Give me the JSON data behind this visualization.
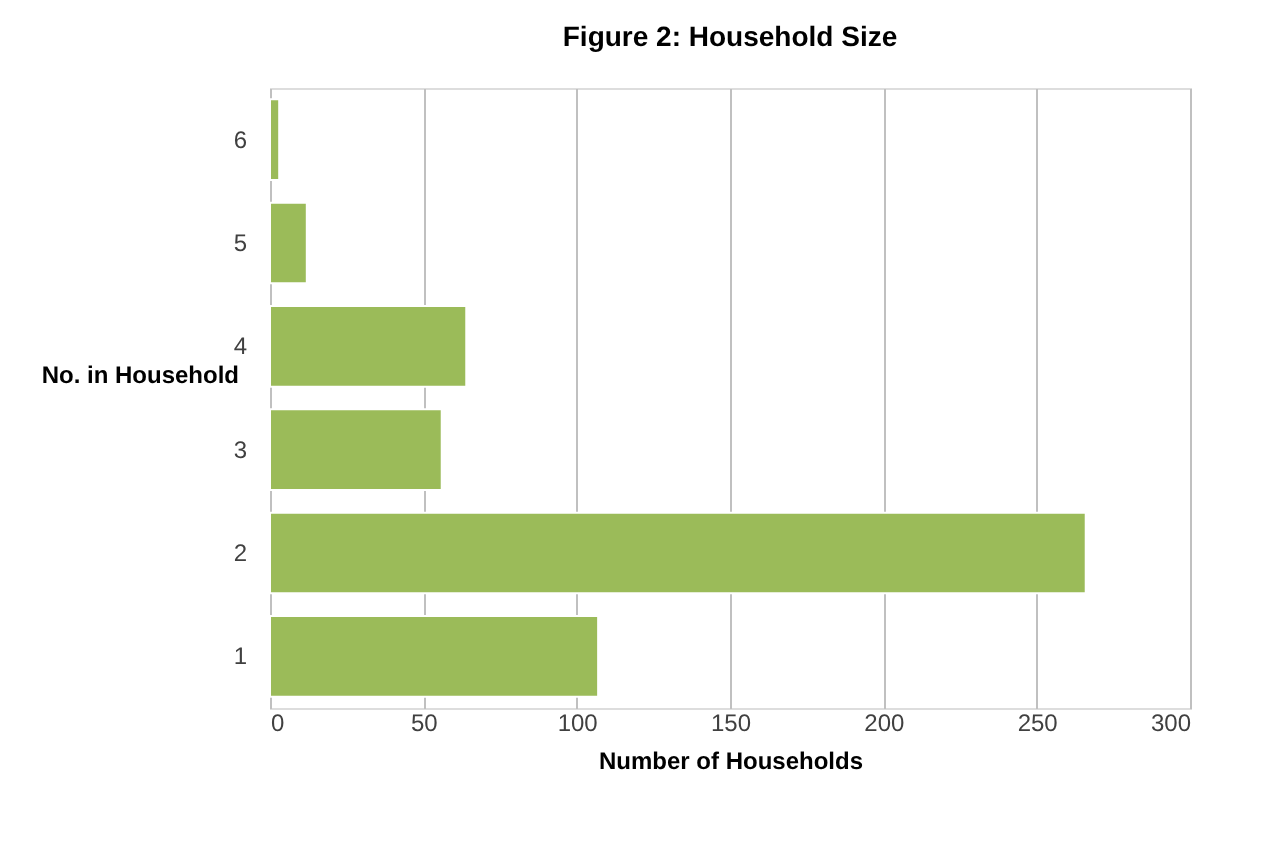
{
  "chart_data": {
    "type": "bar",
    "orientation": "horizontal",
    "title": "Figure 2: Household Size",
    "xlabel": "Number of Households",
    "ylabel": "No. in Household",
    "categories": [
      "6",
      "5",
      "4",
      "3",
      "2",
      "1"
    ],
    "values": [
      3,
      12,
      64,
      56,
      266,
      107
    ],
    "color": "#9bbb59",
    "xlim": [
      0,
      300
    ],
    "xticks": [
      0,
      50,
      100,
      150,
      200,
      250,
      300
    ],
    "grid": "x"
  }
}
